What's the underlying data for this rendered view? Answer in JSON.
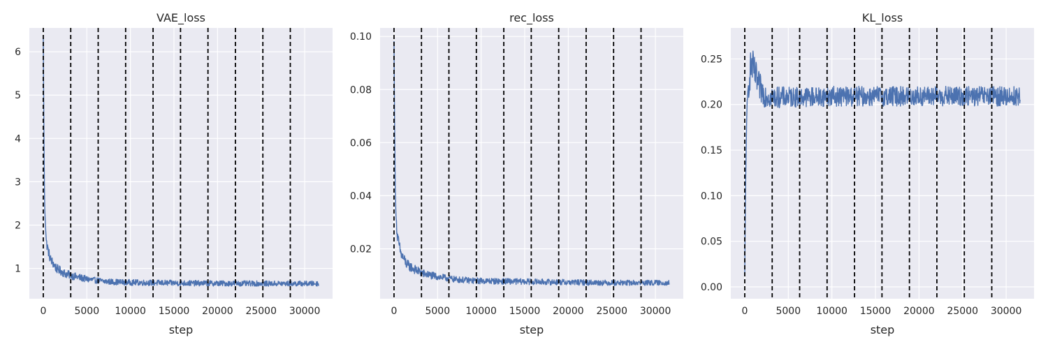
{
  "chart_data": [
    {
      "type": "line",
      "title": "VAE_loss",
      "xlabel": "step",
      "ylabel": "",
      "xlim": [
        -1600,
        33200
      ],
      "ylim": [
        0.3,
        6.55
      ],
      "xticks": [
        0,
        5000,
        10000,
        15000,
        20000,
        25000,
        30000
      ],
      "yticks": [
        1,
        2,
        3,
        4,
        5,
        6
      ],
      "ytick_labels": [
        "1",
        "2",
        "3",
        "4",
        "5",
        "6"
      ],
      "grid": true,
      "vlines": [
        0,
        3150,
        6300,
        9450,
        12600,
        15750,
        18900,
        22050,
        25200,
        28350
      ],
      "series": [
        {
          "color": "#4c72b0",
          "x_max": 31600,
          "center": [
            [
              0,
              6.3
            ],
            [
              60,
              4.4
            ],
            [
              150,
              2.5
            ],
            [
              350,
              1.6
            ],
            [
              800,
              1.22
            ],
            [
              1500,
              1.0
            ],
            [
              2500,
              0.88
            ],
            [
              3500,
              0.82
            ],
            [
              5000,
              0.75
            ],
            [
              7000,
              0.7
            ],
            [
              9000,
              0.68
            ],
            [
              12000,
              0.67
            ],
            [
              16000,
              0.66
            ],
            [
              20000,
              0.655
            ],
            [
              25000,
              0.65
            ],
            [
              31600,
              0.65
            ]
          ],
          "spread": [
            [
              0,
              0.05
            ],
            [
              400,
              0.12
            ],
            [
              2000,
              0.1
            ],
            [
              6000,
              0.07
            ],
            [
              31600,
              0.06
            ]
          ]
        }
      ]
    },
    {
      "type": "line",
      "title": "rec_loss",
      "xlabel": "step",
      "ylabel": "",
      "xlim": [
        -1600,
        33200
      ],
      "ylim": [
        0.0012,
        0.1032
      ],
      "xticks": [
        0,
        5000,
        10000,
        15000,
        20000,
        25000,
        30000
      ],
      "yticks": [
        0.02,
        0.04,
        0.06,
        0.08,
        0.1
      ],
      "ytick_labels": [
        "0.02",
        "0.04",
        "0.06",
        "0.08",
        "0.10"
      ],
      "grid": true,
      "vlines": [
        0,
        3150,
        6300,
        9450,
        12600,
        15750,
        18900,
        22050,
        25200,
        28350
      ],
      "series": [
        {
          "color": "#4c72b0",
          "x_max": 31600,
          "center": [
            [
              0,
              0.098
            ],
            [
              60,
              0.07
            ],
            [
              150,
              0.04
            ],
            [
              350,
              0.025
            ],
            [
              800,
              0.018
            ],
            [
              1500,
              0.014
            ],
            [
              2500,
              0.012
            ],
            [
              3500,
              0.0105
            ],
            [
              5000,
              0.0095
            ],
            [
              7000,
              0.0085
            ],
            [
              9000,
              0.008
            ],
            [
              12000,
              0.0078
            ],
            [
              16000,
              0.0076
            ],
            [
              20000,
              0.0074
            ],
            [
              25000,
              0.0072
            ],
            [
              31600,
              0.0072
            ]
          ],
          "spread": [
            [
              0,
              0.0005
            ],
            [
              400,
              0.0025
            ],
            [
              2000,
              0.0018
            ],
            [
              6000,
              0.0012
            ],
            [
              31600,
              0.001
            ]
          ]
        }
      ]
    },
    {
      "type": "line",
      "title": "KL_loss",
      "xlabel": "step",
      "ylabel": "",
      "xlim": [
        -1600,
        33200
      ],
      "ylim": [
        -0.013,
        0.284
      ],
      "xticks": [
        0,
        5000,
        10000,
        15000,
        20000,
        25000,
        30000
      ],
      "yticks": [
        0.0,
        0.05,
        0.1,
        0.15,
        0.2,
        0.25
      ],
      "ytick_labels": [
        "0.00",
        "0.05",
        "0.10",
        "0.15",
        "0.20",
        "0.25"
      ],
      "grid": true,
      "vlines": [
        0,
        3150,
        6300,
        9450,
        12600,
        15750,
        18900,
        22050,
        25200,
        28350
      ],
      "series": [
        {
          "color": "#4c72b0",
          "x_max": 31600,
          "center": [
            [
              0,
              0.01
            ],
            [
              60,
              0.08
            ],
            [
              150,
              0.15
            ],
            [
              300,
              0.2
            ],
            [
              500,
              0.23
            ],
            [
              800,
              0.245
            ],
            [
              1100,
              0.235
            ],
            [
              1600,
              0.22
            ],
            [
              2200,
              0.212
            ],
            [
              3000,
              0.208
            ],
            [
              5000,
              0.208
            ],
            [
              10000,
              0.209
            ],
            [
              20000,
              0.209
            ],
            [
              31600,
              0.209
            ]
          ],
          "spread": [
            [
              0,
              0.004
            ],
            [
              500,
              0.02
            ],
            [
              1200,
              0.018
            ],
            [
              3000,
              0.012
            ],
            [
              6000,
              0.011
            ],
            [
              31600,
              0.011
            ]
          ]
        }
      ]
    }
  ]
}
